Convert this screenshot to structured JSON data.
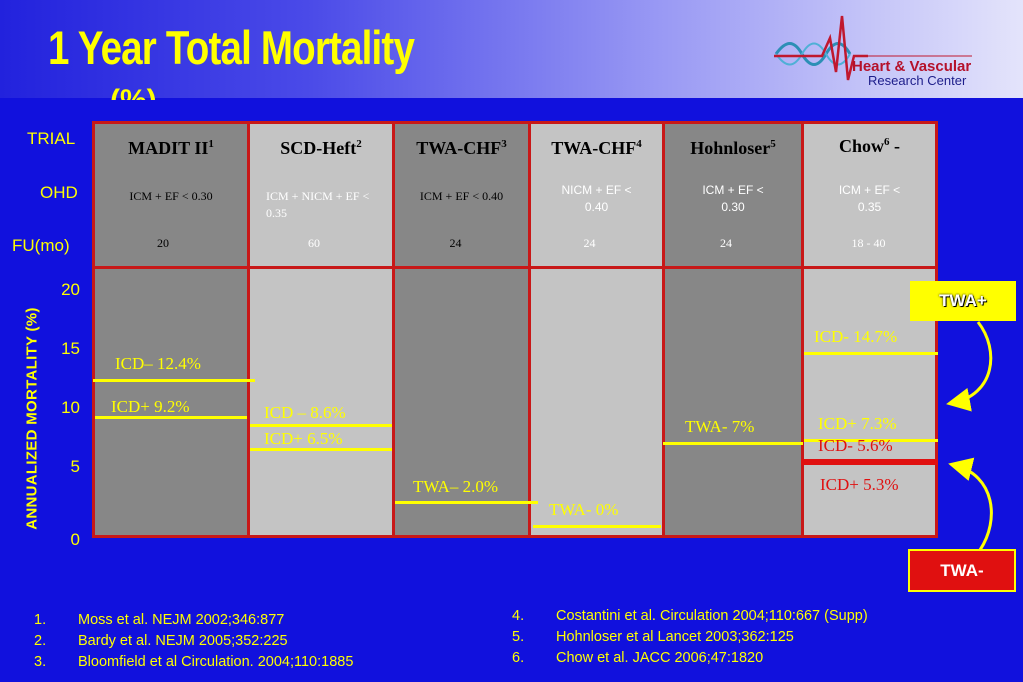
{
  "title": "1 Year Total Mortality",
  "logo": {
    "line1": "Heart & Vascular",
    "line2": "Research Center"
  },
  "row_labels": {
    "trial": "TRIAL",
    "ohd": "OHD",
    "fu": "FU(mo)"
  },
  "y_axis_label": "ANNUALIZED MORTALITY (%)",
  "chart_data": {
    "type": "table",
    "ylabel": "ANNUALIZED MORTALITY (%)",
    "ylim": [
      0,
      20
    ],
    "yticks": [
      "20",
      "15",
      "10",
      "5",
      "0"
    ],
    "trials": [
      {
        "name": "MADIT II",
        "ref": "1",
        "ohd": "ICM + EF < 0.30",
        "fu": "20",
        "results": [
          {
            "label": "ICD–  12.4%",
            "value": 12.4,
            "line": "#ffff00",
            "text": "#ffff00"
          },
          {
            "label": "ICD+  9.2%",
            "value": 9.2,
            "line": "#ffff00",
            "text": "#ffff00"
          }
        ]
      },
      {
        "name": "SCD-Heft",
        "ref": "2",
        "ohd": "ICM + NICM + EF < 0.35",
        "fu": "60",
        "results": [
          {
            "label": "ICD –  8.6%",
            "value": 8.6,
            "line": "#ffff00",
            "text": "#ffff00"
          },
          {
            "label": "ICD+  6.5%",
            "value": 6.5,
            "line": "#ffff00",
            "text": "#ffff00"
          }
        ]
      },
      {
        "name": "TWA-CHF",
        "ref": "3",
        "ohd": "ICM + EF < 0.40",
        "fu": "24",
        "results": [
          {
            "label": "TWA– 2.0%",
            "value": 2.0,
            "line": "#ffff00",
            "text": "#ffff00"
          }
        ]
      },
      {
        "name": "TWA-CHF",
        "ref": "4",
        "ohd": "NICM + EF < 0.40",
        "fu": "24",
        "results": [
          {
            "label": "TWA-  0%",
            "value": 0,
            "line": "#ffff00",
            "text": "#ffff00"
          }
        ]
      },
      {
        "name": "Hohnloser",
        "ref": "5",
        "ohd": "ICM + EF < 0.30",
        "fu": "24",
        "results": [
          {
            "label": "TWA-  7%",
            "value": 7.0,
            "line": "#ffff00",
            "text": "#ffff00"
          }
        ]
      },
      {
        "name": "Chow",
        "ref": "6",
        "suffix": " -",
        "ohd": "ICM + EF < 0.35",
        "fu": "18 - 40",
        "results": [
          {
            "label": "ICD-  14.7%",
            "value": 14.7,
            "line": "#ffff00",
            "text": "#ffff00"
          },
          {
            "label": "ICD+  7.3%",
            "value": 7.3,
            "line": "#ffff00",
            "text": "#ffff00"
          },
          {
            "label": "ICD-  5.6%",
            "value": 5.6,
            "line": "#e01010",
            "text": "#e01010"
          },
          {
            "label": "ICD+  5.3%",
            "value": 5.3,
            "line": "#e01010",
            "text": "#e01010"
          }
        ]
      }
    ]
  },
  "twa_positive": {
    "label": "TWA+",
    "bg": "#ffff00",
    "color": "#ffffff"
  },
  "twa_negative": {
    "label": "TWA-",
    "bg": "#e01010",
    "color": "#ffffff"
  },
  "references_left": [
    {
      "num": "1.",
      "text": "Moss et al. NEJM 2002;346:877"
    },
    {
      "num": "2.",
      "text": "Bardy et al. NEJM 2005;352:225"
    },
    {
      "num": "3.",
      "text": "Bloomfield et al Circulation. 2004;110:1885"
    }
  ],
  "references_right": [
    {
      "num": "4.",
      "text": "Costantini et al.  Circulation 2004;110:667 (Supp)"
    },
    {
      "num": "5.",
      "text": "Hohnloser et al Lancet 2003;362:125"
    },
    {
      "num": "6.",
      "text": "Chow et al. JACC 2006;47:1820"
    }
  ]
}
